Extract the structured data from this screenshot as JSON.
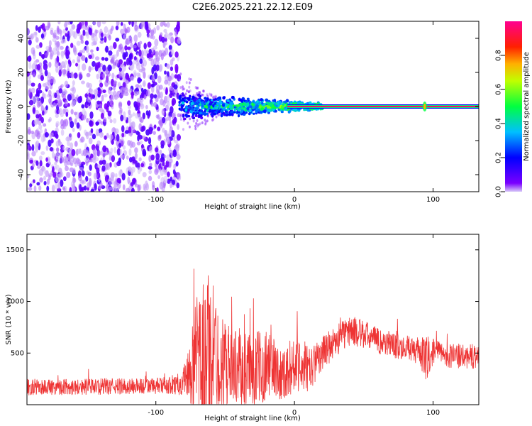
{
  "title": "C2E6.2025.221.22.12.E09",
  "chart_data": [
    {
      "type": "heatmap",
      "xlabel": "Height of straight line (km)",
      "ylabel": "Frequency (Hz)",
      "xlim": [
        -193,
        133
      ],
      "ylim": [
        -50,
        50
      ],
      "xticks": [
        -100,
        0,
        100
      ],
      "yticks": [
        -40,
        -20,
        0,
        20,
        40
      ],
      "colorbar": {
        "label": "Normalized spectral amplitude",
        "range": [
          0,
          1
        ],
        "ticks": [
          0.0,
          0.2,
          0.4,
          0.6,
          0.8
        ],
        "tick_labels": [
          "0.0",
          "0.2",
          "0.4",
          "0.6",
          "0.8"
        ],
        "colormap": [
          "#c8b4f0",
          "#6a00ff",
          "#0000ff",
          "#00ffff",
          "#00ff00",
          "#ffff00",
          "#ff0000",
          "#ff0080"
        ]
      },
      "regions": [
        {
          "name": "noise",
          "x_range": [
            -193,
            -83
          ],
          "freq_range": [
            -50,
            50
          ],
          "amplitude": 0.1
        },
        {
          "name": "signal-band",
          "x_range": [
            -83,
            20
          ],
          "freq_center": 0,
          "freq_halfwidth_start": 8,
          "freq_halfwidth_end": 2,
          "amplitude": 0.35
        },
        {
          "name": "line",
          "x_range": [
            0,
            133
          ],
          "freq": 0,
          "amplitude": 0.95
        }
      ],
      "annotations": [
        {
          "x": 94,
          "freq": 0,
          "note": "spike"
        }
      ]
    },
    {
      "type": "line",
      "xlabel": "Height of straight line (km)",
      "ylabel": "SNR (10 * v/v)",
      "xlim": [
        -193,
        133
      ],
      "ylim": [
        0,
        1650
      ],
      "xticks": [
        -100,
        0,
        100
      ],
      "yticks": [
        500,
        1000,
        1500
      ],
      "color": "#ee3333",
      "envelope": {
        "x": [
          -193,
          -100,
          -85,
          -78,
          -70,
          -62,
          -55,
          -45,
          -38,
          -30,
          -20,
          -15,
          -10,
          -5,
          0,
          5,
          10,
          20,
          30,
          40,
          50,
          60,
          70,
          80,
          90,
          95,
          100,
          110,
          120,
          133
        ],
        "mid": [
          170,
          180,
          190,
          260,
          420,
          480,
          420,
          380,
          350,
          320,
          400,
          360,
          300,
          320,
          400,
          420,
          320,
          500,
          620,
          720,
          680,
          620,
          580,
          550,
          520,
          420,
          520,
          480,
          460,
          470
        ],
        "amp": [
          80,
          80,
          90,
          200,
          650,
          900,
          500,
          350,
          400,
          380,
          350,
          300,
          250,
          280,
          260,
          300,
          220,
          160,
          160,
          150,
          140,
          130,
          130,
          120,
          130,
          250,
          120,
          120,
          120,
          120
        ]
      }
    }
  ]
}
